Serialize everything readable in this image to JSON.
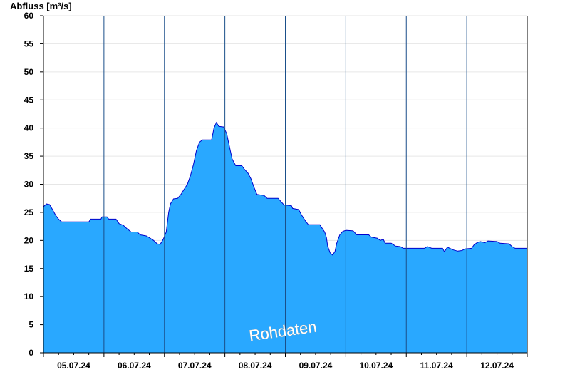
{
  "chart_data": {
    "type": "area",
    "ylabel": "Abfluss [m³/s]",
    "xlabel": "",
    "title": "",
    "watermark": "Rohdaten",
    "ylim": [
      0,
      60
    ],
    "yticks": [
      0,
      5,
      10,
      15,
      20,
      25,
      30,
      35,
      40,
      45,
      50,
      55,
      60
    ],
    "grid": true,
    "x_day_range": [
      0,
      8
    ],
    "day_labels": [
      "05.07.24",
      "06.07.24",
      "07.07.24",
      "08.07.24",
      "09.07.24",
      "10.07.24",
      "11.07.24",
      "12.07.24"
    ],
    "fill_color": "#29a8ff",
    "line_color": "#0000cc",
    "series": [
      {
        "values": [
          [
            0.0,
            26.0
          ],
          [
            0.05,
            26.5
          ],
          [
            0.1,
            26.4
          ],
          [
            0.15,
            25.5
          ],
          [
            0.2,
            24.5
          ],
          [
            0.25,
            23.8
          ],
          [
            0.3,
            23.3
          ],
          [
            0.5,
            23.3
          ],
          [
            0.75,
            23.3
          ],
          [
            0.78,
            23.8
          ],
          [
            0.95,
            23.8
          ],
          [
            0.97,
            24.2
          ],
          [
            1.05,
            24.2
          ],
          [
            1.08,
            23.8
          ],
          [
            1.2,
            23.8
          ],
          [
            1.25,
            23.0
          ],
          [
            1.32,
            22.7
          ],
          [
            1.38,
            22.1
          ],
          [
            1.45,
            21.5
          ],
          [
            1.55,
            21.5
          ],
          [
            1.6,
            21.0
          ],
          [
            1.7,
            20.8
          ],
          [
            1.75,
            20.5
          ],
          [
            1.82,
            20.0
          ],
          [
            1.88,
            19.4
          ],
          [
            1.93,
            19.3
          ],
          [
            1.98,
            20.2
          ],
          [
            2.03,
            21.5
          ],
          [
            2.07,
            25.0
          ],
          [
            2.1,
            26.5
          ],
          [
            2.15,
            27.4
          ],
          [
            2.22,
            27.5
          ],
          [
            2.28,
            28.3
          ],
          [
            2.32,
            29.0
          ],
          [
            2.38,
            30.0
          ],
          [
            2.43,
            31.5
          ],
          [
            2.48,
            33.5
          ],
          [
            2.53,
            36.0
          ],
          [
            2.58,
            37.5
          ],
          [
            2.63,
            37.9
          ],
          [
            2.78,
            37.9
          ],
          [
            2.82,
            40.0
          ],
          [
            2.86,
            41.0
          ],
          [
            2.9,
            40.3
          ],
          [
            2.98,
            40.2
          ],
          [
            3.03,
            39.0
          ],
          [
            3.08,
            36.5
          ],
          [
            3.12,
            34.5
          ],
          [
            3.18,
            33.3
          ],
          [
            3.28,
            33.3
          ],
          [
            3.32,
            32.7
          ],
          [
            3.38,
            32.0
          ],
          [
            3.43,
            31.0
          ],
          [
            3.48,
            29.5
          ],
          [
            3.53,
            28.2
          ],
          [
            3.65,
            28.0
          ],
          [
            3.7,
            27.5
          ],
          [
            3.88,
            27.5
          ],
          [
            3.92,
            27.0
          ],
          [
            3.98,
            26.3
          ],
          [
            4.1,
            26.2
          ],
          [
            4.12,
            25.7
          ],
          [
            4.22,
            25.5
          ],
          [
            4.27,
            24.5
          ],
          [
            4.33,
            23.5
          ],
          [
            4.38,
            22.8
          ],
          [
            4.57,
            22.8
          ],
          [
            4.6,
            22.3
          ],
          [
            4.65,
            21.5
          ],
          [
            4.68,
            20.5
          ],
          [
            4.7,
            19.0
          ],
          [
            4.74,
            17.8
          ],
          [
            4.78,
            17.4
          ],
          [
            4.82,
            18.0
          ],
          [
            4.85,
            19.5
          ],
          [
            4.9,
            21.0
          ],
          [
            4.95,
            21.6
          ],
          [
            5.0,
            21.8
          ],
          [
            5.12,
            21.7
          ],
          [
            5.18,
            21.0
          ],
          [
            5.38,
            21.0
          ],
          [
            5.42,
            20.6
          ],
          [
            5.52,
            20.4
          ],
          [
            5.57,
            20.0
          ],
          [
            5.62,
            20.2
          ],
          [
            5.65,
            19.5
          ],
          [
            5.75,
            19.5
          ],
          [
            5.82,
            19.0
          ],
          [
            5.9,
            18.9
          ],
          [
            5.95,
            18.6
          ],
          [
            6.3,
            18.6
          ],
          [
            6.35,
            18.9
          ],
          [
            6.42,
            18.6
          ],
          [
            6.6,
            18.6
          ],
          [
            6.63,
            18.0
          ],
          [
            6.68,
            18.8
          ],
          [
            6.72,
            18.6
          ],
          [
            6.78,
            18.3
          ],
          [
            6.85,
            18.1
          ],
          [
            6.92,
            18.2
          ],
          [
            6.97,
            18.5
          ],
          [
            7.08,
            18.6
          ],
          [
            7.12,
            19.2
          ],
          [
            7.17,
            19.6
          ],
          [
            7.22,
            19.8
          ],
          [
            7.3,
            19.6
          ],
          [
            7.35,
            19.9
          ],
          [
            7.5,
            19.8
          ],
          [
            7.55,
            19.5
          ],
          [
            7.7,
            19.4
          ],
          [
            7.75,
            18.9
          ],
          [
            7.8,
            18.6
          ],
          [
            8.0,
            18.6
          ]
        ]
      }
    ]
  }
}
